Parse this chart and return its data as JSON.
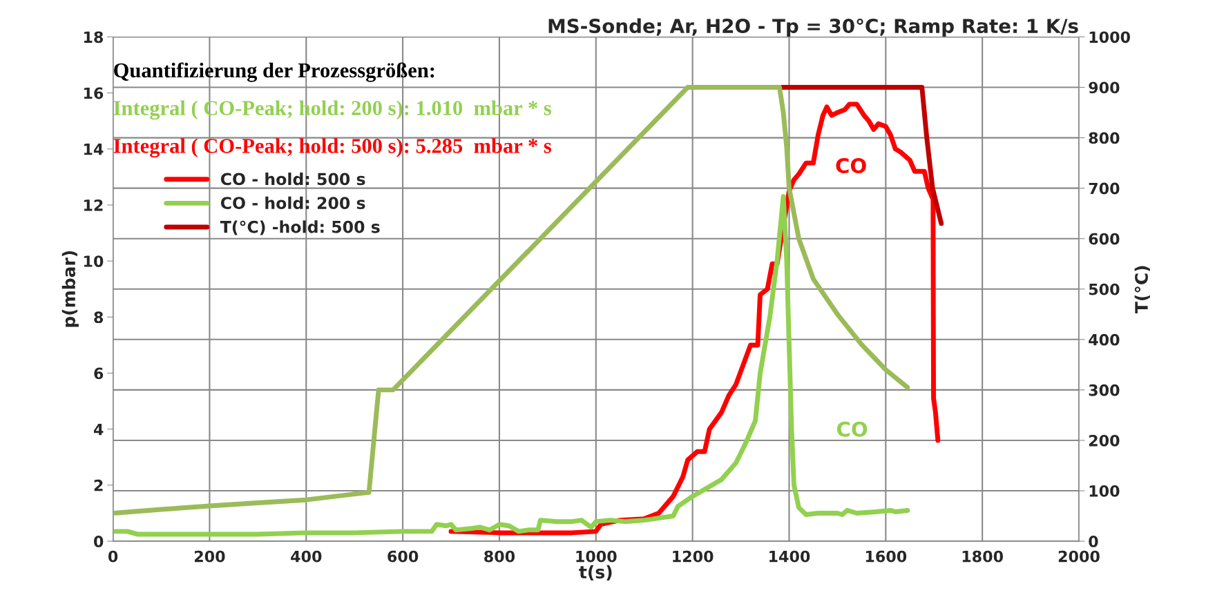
{
  "chart_data": {
    "type": "line",
    "title": "MS-Sonde; Ar, H2O - Tp = 30°C; Ramp Rate: 1 K/s",
    "xlabel": "t(s)",
    "ylabel": "p(mbar)",
    "y2label": "T(°C)",
    "xlim": [
      0,
      2000
    ],
    "xticks": [
      0,
      200,
      400,
      600,
      800,
      1000,
      1200,
      1400,
      1600,
      1800,
      2000
    ],
    "ylim": [
      0,
      18
    ],
    "yticks": [
      0,
      2,
      4,
      6,
      8,
      10,
      12,
      14,
      16,
      18
    ],
    "y2lim": [
      0,
      1000
    ],
    "y2ticks": [
      0,
      100,
      200,
      300,
      400,
      500,
      600,
      700,
      800,
      900,
      1000
    ],
    "grid": true,
    "legend": "top left",
    "line_style": "solid",
    "marker": "none",
    "annotations": [
      "Quantifizierung der Prozessgrößen:",
      "Integral ( CO-Peak; hold: 200 s): 1.010  mbar * s",
      "Integral ( CO-Peak; hold: 500 s): 5.285  mbar * s",
      "CO",
      "CO"
    ],
    "series": [
      {
        "name": "CO - hold: 500 s",
        "color": "#ff0000",
        "x": [
          700,
          800,
          900,
          950,
          1000,
          1010,
          1050,
          1100,
          1130,
          1160,
          1180,
          1190,
          1210,
          1225,
          1235,
          1260,
          1275,
          1290,
          1305,
          1320,
          1335,
          1340,
          1355,
          1365,
          1375,
          1385,
          1400,
          1410,
          1420,
          1435,
          1450,
          1460,
          1470,
          1478,
          1488,
          1500,
          1515,
          1525,
          1540,
          1555,
          1565,
          1575,
          1585,
          1600,
          1610,
          1620,
          1630,
          1650,
          1660,
          1680,
          1688,
          1698,
          1699,
          1703,
          1708
        ],
        "values": [
          0.35,
          0.3,
          0.3,
          0.3,
          0.35,
          0.6,
          0.75,
          0.8,
          1.0,
          1.6,
          2.3,
          2.9,
          3.2,
          3.2,
          4.0,
          4.6,
          5.2,
          5.6,
          6.3,
          7.0,
          7.0,
          8.8,
          9.0,
          9.9,
          9.9,
          null,
          12.5,
          12.9,
          13.1,
          13.5,
          13.5,
          14.5,
          15.2,
          15.5,
          15.2,
          15.3,
          15.4,
          15.6,
          15.6,
          15.2,
          15.0,
          14.7,
          14.9,
          14.8,
          14.5,
          14.0,
          13.9,
          13.6,
          13.2,
          13.2,
          12.6,
          12.2,
          5.1,
          4.6,
          3.6
        ]
      },
      {
        "name": "CO - hold: 200 s",
        "color": "#92d050",
        "x": [
          5,
          30,
          50,
          100,
          200,
          300,
          400,
          500,
          600,
          660,
          670,
          690,
          700,
          710,
          740,
          760,
          780,
          800,
          820,
          840,
          860,
          880,
          885,
          920,
          950,
          970,
          990,
          1000,
          1030,
          1060,
          1100,
          1140,
          1160,
          1170,
          1200,
          1230,
          1260,
          1290,
          1310,
          1330,
          1340,
          1360,
          1375,
          1388,
          1395,
          1400,
          1405,
          1410,
          1420,
          1435,
          1460,
          1500,
          1510,
          1520,
          1540,
          1580,
          1610,
          1620,
          1645
        ],
        "values": [
          0.35,
          0.35,
          0.25,
          0.25,
          0.25,
          0.25,
          0.3,
          0.3,
          0.35,
          0.35,
          0.6,
          0.55,
          0.6,
          0.4,
          0.45,
          0.5,
          0.4,
          0.6,
          0.55,
          0.35,
          0.4,
          0.4,
          0.75,
          0.7,
          0.7,
          0.75,
          0.5,
          0.7,
          0.75,
          0.7,
          0.75,
          0.85,
          0.9,
          1.25,
          1.6,
          1.9,
          2.2,
          2.8,
          3.5,
          4.3,
          6.0,
          8.0,
          10.0,
          12.3,
          10.0,
          7.0,
          4.0,
          2.0,
          1.2,
          0.95,
          1.0,
          1.0,
          0.95,
          1.1,
          1.0,
          1.05,
          1.1,
          1.05,
          1.1
        ]
      },
      {
        "name": "T(°C) -hold: 500 s",
        "color": "#c00000",
        "axis": "y2",
        "x": [
          1385,
          1675,
          1685,
          1697,
          1715
        ],
        "values": [
          900,
          900,
          800,
          700,
          630
        ]
      },
      {
        "color": "#9bbb59",
        "axis": "y2",
        "x": [
          5,
          100,
          200,
          300,
          400,
          530,
          545,
          550,
          580,
          1190,
          1380,
          1388,
          1395,
          1400,
          1420,
          1450,
          1500,
          1550,
          1600,
          1645
        ],
        "values": [
          56,
          63,
          70,
          76,
          82,
          97,
          250,
          300,
          300,
          900,
          900,
          850,
          780,
          700,
          600,
          520,
          450,
          390,
          340,
          305
        ]
      }
    ]
  }
}
